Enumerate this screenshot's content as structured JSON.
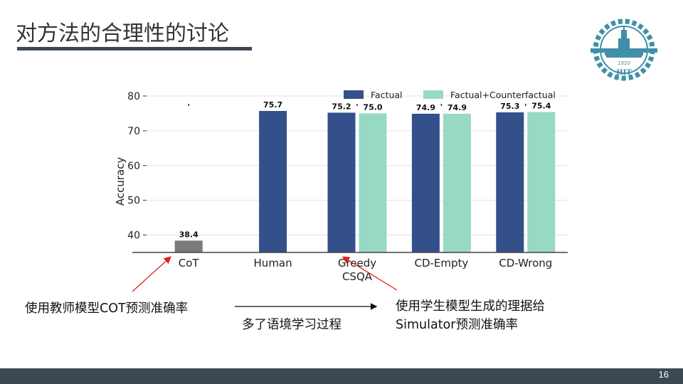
{
  "slide": {
    "title": "对方法的合理性的讨论",
    "page_number": "16",
    "logo_text": "HIT",
    "logo_year": "1920"
  },
  "notes": {
    "left": "使用教师模型COT预测准确率",
    "middle": "多了语境学习过程",
    "right_line1": "使用学生模型生成的理据给",
    "right_line2": "Simulator预测准确率"
  },
  "colors": {
    "factual": "#34508a",
    "counterfactual": "#98d9c6",
    "cot": "#7a7a7a",
    "accent_arrow": "#e02020",
    "footer": "#3b4752"
  },
  "chart_data": {
    "type": "bar",
    "categories": [
      "CoT",
      "Human",
      "Greedy",
      "CD-Empty",
      "CD-Wrong"
    ],
    "xlabel": "CSQA",
    "ylabel": "Accuracy",
    "ylim": [
      35,
      80
    ],
    "yticks": [
      40,
      50,
      60,
      70,
      80
    ],
    "grid": true,
    "legend_position": "top-right",
    "series": [
      {
        "name": "Factual",
        "color": "#34508a",
        "values": [
          null,
          75.7,
          75.2,
          74.9,
          75.3
        ]
      },
      {
        "name": "Factual+Counterfactual",
        "color": "#98d9c6",
        "values": [
          null,
          null,
          75.0,
          74.9,
          75.4
        ]
      }
    ],
    "baseline": {
      "category": "CoT",
      "value": 38.4,
      "color": "#7a7a7a"
    },
    "value_labels": {
      "baseline": "38.4",
      "series": [
        [
          null,
          "75.7",
          "75.2",
          "74.9",
          "75.3"
        ],
        [
          null,
          null,
          "75.0",
          "74.9",
          "75.4"
        ]
      ]
    }
  }
}
